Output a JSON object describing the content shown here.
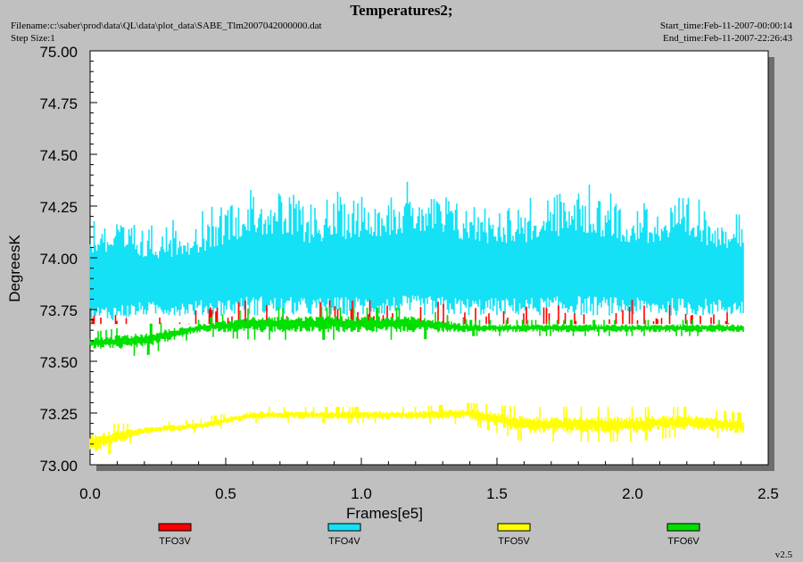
{
  "header": {
    "title": "Temperatures2;",
    "filename": "Filename:c:\\saber\\prod\\data\\QL\\data\\plot_data\\SABE_Tlm2007042000000.dat",
    "step_size": "Step Size:1",
    "start_time": "Start_time:Feb-11-2007-00:00:14",
    "end_time": "End_time:Feb-11-2007-22:26:43"
  },
  "version": "v2.5",
  "colors": {
    "background": "#c0c0c0",
    "plot_area": "#ffffff",
    "shadow": "#6e6e6e"
  },
  "chart_data": {
    "type": "line",
    "xlabel": "Frames[e5]",
    "ylabel": "DegreesK",
    "xlim": [
      0,
      2.5
    ],
    "ylim": [
      73.0,
      75.0
    ],
    "xticks": [
      0.0,
      0.5,
      1.0,
      1.5,
      2.0,
      2.5
    ],
    "xtick_labels": [
      "0.0",
      "0.5",
      "1.0",
      "1.5",
      "2.0",
      "2.5"
    ],
    "yticks": [
      73.0,
      73.25,
      73.5,
      73.75,
      74.0,
      74.25,
      74.5,
      74.75,
      75.0
    ],
    "ytick_labels": [
      "73.00",
      "73.25",
      "73.50",
      "73.75",
      "74.00",
      "74.25",
      "74.50",
      "74.75",
      "75.00"
    ],
    "grid": false,
    "legend_position": "bottom",
    "series": [
      {
        "name": "TFO3V",
        "color": "#ff0000",
        "x": [
          0.0,
          0.2,
          0.4,
          0.6,
          0.8,
          1.0,
          1.2,
          1.4,
          1.6,
          1.8,
          2.0,
          2.2,
          2.41
        ],
        "low": [
          73.68,
          73.68,
          73.68,
          73.68,
          73.68,
          73.68,
          73.68,
          73.68,
          73.68,
          73.68,
          73.68,
          73.68,
          73.68
        ],
        "high": [
          73.72,
          73.75,
          73.75,
          73.82,
          73.8,
          73.8,
          73.82,
          73.76,
          73.78,
          73.8,
          73.8,
          73.76,
          73.76
        ]
      },
      {
        "name": "TFO4V",
        "color": "#14e1f5",
        "x": [
          0.0,
          0.2,
          0.4,
          0.6,
          0.8,
          1.0,
          1.2,
          1.4,
          1.6,
          1.8,
          2.0,
          2.2,
          2.41
        ],
        "low": [
          73.68,
          73.72,
          73.72,
          73.72,
          73.72,
          73.72,
          73.72,
          73.72,
          73.72,
          73.72,
          73.72,
          73.72,
          73.72
        ],
        "high": [
          74.25,
          74.17,
          74.22,
          74.38,
          74.3,
          74.35,
          74.38,
          74.3,
          74.3,
          74.38,
          74.3,
          74.3,
          74.25
        ]
      },
      {
        "name": "TFO5V",
        "color": "#ffff00",
        "x": [
          0.0,
          0.2,
          0.4,
          0.6,
          0.8,
          1.0,
          1.2,
          1.4,
          1.6,
          1.8,
          2.0,
          2.2,
          2.41
        ],
        "low": [
          73.05,
          73.15,
          73.17,
          73.22,
          73.22,
          73.22,
          73.22,
          73.22,
          73.15,
          73.15,
          73.15,
          73.17,
          73.15
        ],
        "high": [
          73.2,
          73.2,
          73.22,
          73.28,
          73.28,
          73.28,
          73.28,
          73.3,
          73.28,
          73.28,
          73.28,
          73.28,
          73.25
        ]
      },
      {
        "name": "TFO6V",
        "color": "#00e000",
        "x": [
          0.0,
          0.2,
          0.4,
          0.6,
          0.8,
          1.0,
          1.2,
          1.4,
          1.6,
          1.8,
          2.0,
          2.2,
          2.41
        ],
        "low": [
          73.56,
          73.56,
          73.64,
          73.64,
          73.64,
          73.64,
          73.64,
          73.64,
          73.64,
          73.64,
          73.64,
          73.64,
          73.64
        ],
        "high": [
          73.64,
          73.68,
          73.7,
          73.76,
          73.76,
          73.76,
          73.76,
          73.7,
          73.7,
          73.7,
          73.7,
          73.7,
          73.7
        ]
      }
    ]
  }
}
